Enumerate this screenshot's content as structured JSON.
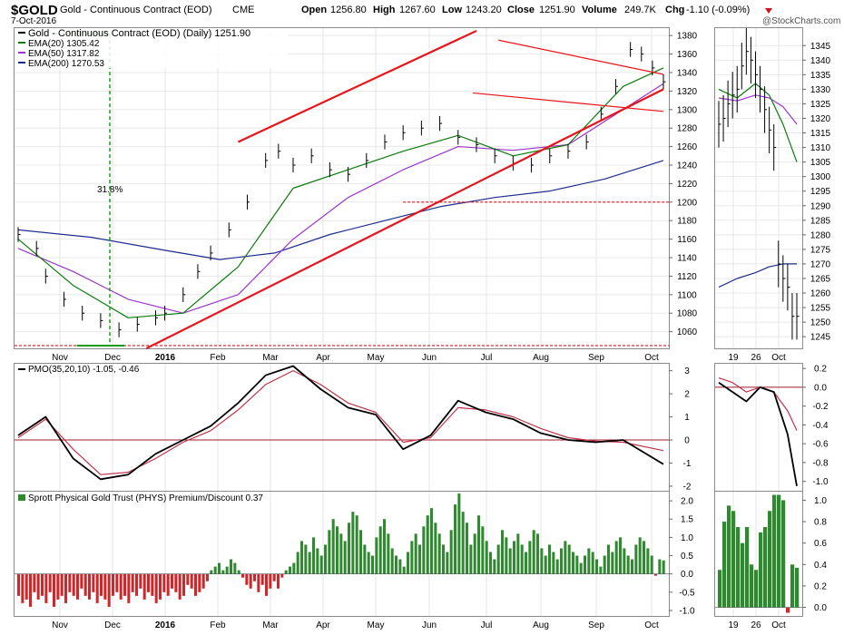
{
  "header": {
    "symbol": "$GOLD",
    "name": "Gold - Continuous Contract (EOD)",
    "exchange": "CME",
    "date": "7-Oct-2016",
    "open_label": "Open",
    "open": "1256.80",
    "high_label": "High",
    "high": "1267.60",
    "low_label": "Low",
    "low": "1243.20",
    "close_label": "Close",
    "close": "1251.90",
    "volume_label": "Volume",
    "volume": "249.7K",
    "chg_label": "Chg",
    "chg": "-1.10 (-0.09%)",
    "watermark": "@StockCharts.com"
  },
  "colors": {
    "price_bars": "#000000",
    "ema20": "#0b7a0b",
    "ema50": "#9a36c9",
    "ema200": "#1c2c8c",
    "trendline": "#e8141b",
    "retrace_line": "#1c9c1c",
    "pmo": "#000000",
    "pmo_signal": "#c0334a",
    "zero_line": "#a3192f",
    "premium_bars": "#2f8a2f",
    "discount_bars": "#d0262a",
    "down_marker": "#d0141b"
  },
  "chart_data": [
    {
      "panel": "price_main",
      "type": "line",
      "legend": [
        {
          "label": "Gold - Continuous Contract (EOD) (Daily) 1251.90"
        },
        {
          "label": "EMA(20) 1305.42"
        },
        {
          "label": "EMA(50) 1317.82"
        },
        {
          "label": "EMA(200) 1270.53"
        }
      ],
      "annotation": "31.8%",
      "y_ticks": [
        1060,
        1080,
        1100,
        1120,
        1140,
        1160,
        1180,
        1200,
        1220,
        1240,
        1260,
        1280,
        1300,
        1320,
        1340,
        1360,
        1380
      ],
      "ylim": [
        1042,
        1388
      ],
      "x_labels": [
        "Nov",
        "Dec",
        "2016",
        "Feb",
        "Mar",
        "Apr",
        "May",
        "Jun",
        "Jul",
        "Aug",
        "Sep",
        "Oct"
      ],
      "series": [
        {
          "name": "Close",
          "x": [
            0,
            10,
            15,
            25,
            35,
            45,
            55,
            65,
            75,
            80,
            90,
            98,
            105,
            115,
            125,
            135,
            142,
            150,
            160,
            170,
            180,
            190,
            200,
            210,
            220,
            230,
            240,
            250,
            260,
            270,
            280,
            290,
            300,
            310,
            318,
            326,
            334,
            340,
            346,
            352
          ],
          "values": [
            1165,
            1150,
            1120,
            1095,
            1080,
            1072,
            1062,
            1068,
            1075,
            1080,
            1100,
            1125,
            1145,
            1170,
            1200,
            1245,
            1255,
            1240,
            1250,
            1235,
            1230,
            1245,
            1265,
            1275,
            1280,
            1285,
            1270,
            1262,
            1250,
            1242,
            1240,
            1250,
            1255,
            1265,
            1295,
            1325,
            1365,
            1360,
            1345,
            1330
          ]
        },
        {
          "name": "EMA(20)",
          "x": [
            0,
            30,
            60,
            90,
            120,
            150,
            180,
            210,
            240,
            270,
            300,
            330,
            352
          ],
          "values": [
            1160,
            1110,
            1075,
            1080,
            1130,
            1215,
            1235,
            1255,
            1272,
            1250,
            1262,
            1325,
            1345
          ]
        },
        {
          "name": "EMA(50)",
          "x": [
            0,
            30,
            60,
            90,
            120,
            150,
            180,
            210,
            240,
            270,
            300,
            330,
            352
          ],
          "values": [
            1150,
            1125,
            1095,
            1080,
            1100,
            1160,
            1205,
            1235,
            1260,
            1256,
            1262,
            1300,
            1328
          ]
        },
        {
          "name": "EMA(200)",
          "x": [
            0,
            40,
            80,
            110,
            140,
            170,
            200,
            230,
            260,
            290,
            320,
            352
          ],
          "values": [
            1170,
            1162,
            1148,
            1138,
            1145,
            1165,
            1180,
            1195,
            1205,
            1212,
            1225,
            1245
          ]
        }
      ]
    },
    {
      "panel": "price_zoom",
      "type": "line",
      "y_ticks": [
        1245,
        1250,
        1255,
        1260,
        1265,
        1270,
        1275,
        1280,
        1285,
        1290,
        1295,
        1300,
        1305,
        1310,
        1315,
        1320,
        1325,
        1330,
        1335,
        1340,
        1345
      ],
      "ylim": [
        1241,
        1351
      ],
      "x_labels": [
        "19",
        "26",
        "Oct"
      ],
      "series": [
        {
          "name": "Close",
          "x": [
            0,
            1,
            2,
            3,
            4,
            5,
            6,
            7,
            8,
            9,
            10,
            11,
            12,
            13,
            14,
            15,
            16,
            17
          ],
          "values": [
            1318,
            1320,
            1325,
            1328,
            1330,
            1338,
            1343,
            1340,
            1335,
            1330,
            1323,
            1316,
            1310,
            1270,
            1265,
            1262,
            1252,
            1252
          ]
        },
        {
          "name": "EMA(20)",
          "x": [
            0,
            4,
            8,
            11,
            14,
            17
          ],
          "values": [
            1330,
            1327,
            1332,
            1328,
            1318,
            1305
          ]
        },
        {
          "name": "EMA(50)",
          "x": [
            0,
            4,
            8,
            11,
            14,
            17
          ],
          "values": [
            1327,
            1326,
            1328,
            1327,
            1324,
            1318
          ]
        },
        {
          "name": "EMA(200)",
          "x": [
            0,
            4,
            8,
            11,
            14,
            17
          ],
          "values": [
            1262,
            1265,
            1267,
            1269,
            1270,
            1270
          ]
        }
      ]
    },
    {
      "panel": "pmo",
      "type": "line",
      "legend": [
        {
          "label": "PMO(35,20,10) -1.05, -0.46"
        }
      ],
      "y_ticks": [
        -2,
        -1,
        0,
        1,
        2,
        3
      ],
      "ylim": [
        -2.2,
        3.3
      ],
      "series": [
        {
          "name": "PMO",
          "x": [
            0,
            15,
            30,
            45,
            60,
            75,
            90,
            105,
            120,
            135,
            150,
            165,
            180,
            195,
            210,
            225,
            240,
            255,
            270,
            285,
            300,
            315,
            330,
            352
          ],
          "values": [
            0.2,
            1.0,
            -0.8,
            -1.7,
            -1.5,
            -0.6,
            0.0,
            0.6,
            1.6,
            2.8,
            3.2,
            2.2,
            1.4,
            1.1,
            -0.4,
            0.2,
            1.7,
            1.2,
            0.9,
            0.3,
            0.0,
            -0.1,
            0.0,
            -1.05
          ]
        },
        {
          "name": "Signal",
          "x": [
            0,
            15,
            30,
            45,
            60,
            75,
            90,
            105,
            120,
            135,
            150,
            165,
            180,
            195,
            210,
            225,
            240,
            255,
            270,
            285,
            300,
            315,
            330,
            352
          ],
          "values": [
            0.1,
            0.9,
            -0.4,
            -1.5,
            -1.4,
            -0.8,
            -0.1,
            0.4,
            1.3,
            2.4,
            3.0,
            2.4,
            1.6,
            1.2,
            -0.1,
            0.1,
            1.4,
            1.3,
            1.0,
            0.5,
            0.1,
            -0.05,
            -0.1,
            -0.46
          ]
        }
      ]
    },
    {
      "panel": "pmo_zoom",
      "type": "line",
      "y_ticks": [
        -1.0,
        -0.8,
        -0.6,
        -0.4,
        -0.2,
        0.0,
        0.2
      ],
      "ylim": [
        -1.1,
        0.25
      ],
      "series": [
        {
          "name": "PMO",
          "x": [
            0,
            3,
            6,
            9,
            12,
            15,
            17
          ],
          "values": [
            0.05,
            -0.05,
            -0.15,
            0.0,
            -0.05,
            -0.5,
            -1.05
          ]
        },
        {
          "name": "Signal",
          "x": [
            0,
            3,
            6,
            9,
            12,
            15,
            17
          ],
          "values": [
            0.1,
            0.05,
            -0.05,
            0.0,
            -0.05,
            -0.25,
            -0.46
          ]
        }
      ]
    },
    {
      "panel": "phys_premium",
      "type": "bar",
      "legend": [
        {
          "label": "Sprott Physical Gold Trust (PHYS) Premium/Discount 0.37"
        }
      ],
      "y_ticks": [
        -1.0,
        -0.5,
        0.0,
        0.5,
        1.0,
        1.5,
        2.0
      ],
      "ylim": [
        -1.15,
        2.25
      ],
      "values": [
        -0.6,
        -0.8,
        -0.7,
        -0.9,
        -0.5,
        -0.7,
        -0.6,
        -0.8,
        -0.5,
        -0.9,
        -0.7,
        -0.6,
        -0.8,
        -0.5,
        -0.6,
        -0.7,
        -0.4,
        -0.6,
        -0.7,
        -0.5,
        -0.8,
        -0.6,
        -0.7,
        -0.9,
        -0.6,
        -0.5,
        -0.7,
        -0.6,
        -0.8,
        -0.5,
        -0.6,
        -0.4,
        -0.7,
        -0.5,
        -0.6,
        -0.8,
        -0.7,
        -0.5,
        -0.6,
        -0.4,
        -0.5,
        -0.7,
        -0.6,
        -0.3,
        -0.4,
        -0.6,
        -0.5,
        -0.4,
        -0.2,
        0.1,
        0.2,
        0.3,
        0.1,
        0.2,
        0.4,
        0.3,
        0.1,
        -0.1,
        -0.3,
        -0.4,
        -0.2,
        -0.5,
        -0.3,
        -0.6,
        -0.4,
        -0.2,
        -0.4,
        -0.1,
        0.1,
        0.2,
        0.3,
        0.6,
        0.9,
        0.8,
        0.6,
        1.0,
        0.7,
        0.5,
        0.8,
        1.2,
        1.5,
        1.3,
        1.1,
        0.9,
        1.4,
        1.7,
        1.6,
        1.2,
        0.8,
        0.6,
        0.5,
        1.0,
        1.3,
        1.5,
        1.1,
        0.7,
        0.5,
        0.4,
        0.2,
        0.6,
        0.9,
        1.1,
        0.8,
        1.3,
        1.6,
        1.8,
        1.4,
        1.1,
        0.8,
        0.6,
        1.2,
        1.9,
        2.2,
        1.7,
        1.4,
        0.8,
        1.1,
        1.6,
        1.3,
        0.9,
        0.6,
        0.4,
        0.8,
        1.2,
        1.0,
        0.7,
        0.9,
        1.1,
        0.8,
        0.6,
        0.9,
        1.2,
        1.1,
        0.7,
        0.5,
        0.8,
        0.6,
        0.4,
        0.7,
        0.9,
        0.8,
        0.6,
        0.5,
        0.3,
        0.5,
        0.7,
        0.6,
        0.4,
        0.2,
        0.5,
        0.8,
        0.6,
        0.9,
        1.0,
        0.7,
        0.5,
        0.4,
        0.8,
        1.0,
        0.9,
        0.7,
        0.5,
        -0.05,
        0.4,
        0.37
      ]
    },
    {
      "panel": "phys_zoom",
      "type": "bar",
      "y_ticks": [
        0.0,
        0.2,
        0.4,
        0.6,
        0.8,
        1.0
      ],
      "ylim": [
        -0.08,
        1.08
      ],
      "values": [
        0.35,
        0.8,
        0.95,
        0.9,
        0.75,
        0.6,
        0.75,
        0.4,
        0.35,
        0.7,
        0.75,
        0.9,
        1.05,
        1.05,
        1.0,
        -0.05,
        0.4,
        0.37
      ],
      "x_labels": [
        "19",
        "26",
        "Oct"
      ]
    }
  ]
}
